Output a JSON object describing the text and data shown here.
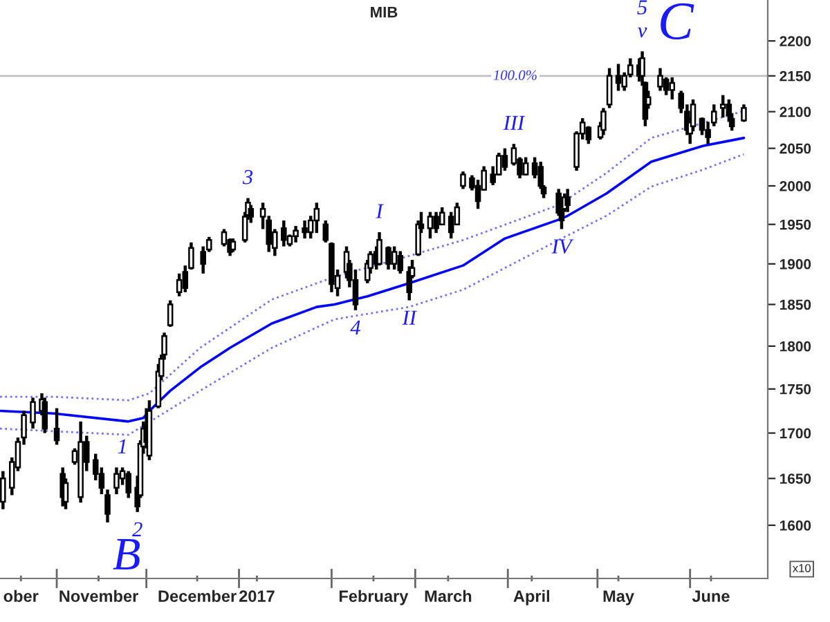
{
  "chart_data": {
    "type": "candlestick",
    "title": "MIB",
    "log": true,
    "grid": false,
    "legend": false,
    "color": "#000000",
    "x": [
      "2016-10-14",
      "2016-10-17",
      "2016-10-19",
      "2016-10-21",
      "2016-10-24",
      "2016-10-27",
      "2016-10-28",
      "2016-11-01",
      "2016-11-03",
      "2016-11-04",
      "2016-11-07",
      "2016-11-09",
      "2016-11-11",
      "2016-11-14",
      "2016-11-16",
      "2016-11-18",
      "2016-11-21",
      "2016-11-23",
      "2016-11-25",
      "2016-11-28",
      "2016-11-29",
      "2016-11-30",
      "2016-12-01",
      "2016-12-02",
      "2016-12-05",
      "2016-12-06",
      "2016-12-07",
      "2016-12-09",
      "2016-12-12",
      "2016-12-14",
      "2016-12-16",
      "2016-12-20",
      "2016-12-22",
      "2016-12-27",
      "2016-12-29",
      "2016-12-30",
      "2017-01-03",
      "2017-01-04",
      "2017-01-05",
      "2017-01-09",
      "2017-01-11",
      "2017-01-13",
      "2017-01-16",
      "2017-01-18",
      "2017-01-20",
      "2017-01-23",
      "2017-01-25",
      "2017-01-27",
      "2017-01-30",
      "2017-02-01",
      "2017-02-03",
      "2017-02-06",
      "2017-02-07",
      "2017-02-09",
      "2017-02-13",
      "2017-02-14",
      "2017-02-16",
      "2017-02-17",
      "2017-02-20",
      "2017-02-22",
      "2017-02-24",
      "2017-02-27",
      "2017-02-28",
      "2017-03-02",
      "2017-03-03",
      "2017-03-06",
      "2017-03-08",
      "2017-03-10",
      "2017-03-13",
      "2017-03-15",
      "2017-03-17",
      "2017-03-20",
      "2017-03-22",
      "2017-03-24",
      "2017-03-27",
      "2017-03-29",
      "2017-03-31",
      "2017-04-03",
      "2017-04-05",
      "2017-04-07",
      "2017-04-10",
      "2017-04-12",
      "2017-04-13",
      "2017-04-18",
      "2017-04-19",
      "2017-04-20",
      "2017-04-21",
      "2017-04-24",
      "2017-04-26",
      "2017-04-28",
      "2017-05-02",
      "2017-05-03",
      "2017-05-05",
      "2017-05-08",
      "2017-05-10",
      "2017-05-12",
      "2017-05-15",
      "2017-05-16",
      "2017-05-17",
      "2017-05-18",
      "2017-05-22",
      "2017-05-24",
      "2017-05-26",
      "2017-05-29",
      "2017-05-31",
      "2017-06-01",
      "2017-06-02",
      "2017-06-05",
      "2017-06-07",
      "2017-06-09",
      "2017-06-12",
      "2017-06-14",
      "2017-06-15",
      "2017-06-19"
    ],
    "ohlc": [
      [
        1625,
        1658,
        1617,
        1650
      ],
      [
        1640,
        1673,
        1632,
        1668
      ],
      [
        1662,
        1695,
        1658,
        1690
      ],
      [
        1695,
        1725,
        1687,
        1720
      ],
      [
        1712,
        1740,
        1705,
        1735
      ],
      [
        1725,
        1745,
        1720,
        1738
      ],
      [
        1735,
        1740,
        1700,
        1705
      ],
      [
        1705,
        1728,
        1687,
        1692
      ],
      [
        1655,
        1662,
        1620,
        1630
      ],
      [
        1625,
        1650,
        1617,
        1645
      ],
      [
        1668,
        1683,
        1665,
        1680
      ],
      [
        1630,
        1713,
        1624,
        1690
      ],
      [
        1690,
        1697,
        1658,
        1668
      ],
      [
        1670,
        1677,
        1648,
        1655
      ],
      [
        1655,
        1662,
        1633,
        1640
      ],
      [
        1632,
        1638,
        1603,
        1612
      ],
      [
        1640,
        1662,
        1633,
        1655
      ],
      [
        1650,
        1662,
        1643,
        1658
      ],
      [
        1655,
        1658,
        1629,
        1635
      ],
      [
        1640,
        1653,
        1614,
        1620
      ],
      [
        1632,
        1692,
        1629,
        1688
      ],
      [
        1685,
        1713,
        1677,
        1705
      ],
      [
        1710,
        1728,
        1683,
        1690
      ],
      [
        1675,
        1737,
        1670,
        1725
      ],
      [
        1730,
        1779,
        1728,
        1770
      ],
      [
        1765,
        1790,
        1760,
        1785
      ],
      [
        1790,
        1816,
        1784,
        1812
      ],
      [
        1825,
        1855,
        1823,
        1850
      ],
      [
        1865,
        1888,
        1860,
        1880
      ],
      [
        1890,
        1898,
        1865,
        1870
      ],
      [
        1895,
        1927,
        1893,
        1920
      ],
      [
        1915,
        1922,
        1888,
        1900
      ],
      [
        1918,
        1934,
        1915,
        1930
      ],
      [
        1925,
        1944,
        1922,
        1940
      ],
      [
        1930,
        1932,
        1910,
        1915
      ],
      [
        1918,
        1932,
        1915,
        1928
      ],
      [
        1930,
        1966,
        1927,
        1960
      ],
      [
        1962,
        1984,
        1956,
        1978
      ],
      [
        1970,
        1975,
        1952,
        1960
      ],
      [
        1960,
        1978,
        1944,
        1970
      ],
      [
        1955,
        1961,
        1915,
        1925
      ],
      [
        1920,
        1944,
        1910,
        1940
      ],
      [
        1945,
        1955,
        1922,
        1930
      ],
      [
        1925,
        1937,
        1922,
        1935
      ],
      [
        1935,
        1948,
        1927,
        1942
      ],
      [
        1945,
        1955,
        1932,
        1940
      ],
      [
        1940,
        1961,
        1932,
        1955
      ],
      [
        1955,
        1978,
        1939,
        1970
      ],
      [
        1950,
        1955,
        1927,
        1930
      ],
      [
        1925,
        1927,
        1865,
        1875
      ],
      [
        1870,
        1893,
        1860,
        1885
      ],
      [
        1890,
        1922,
        1882,
        1915
      ],
      [
        1900,
        1905,
        1871,
        1880
      ],
      [
        1880,
        1893,
        1843,
        1850
      ],
      [
        1880,
        1905,
        1876,
        1900
      ],
      [
        1895,
        1916,
        1888,
        1912
      ],
      [
        1915,
        1922,
        1893,
        1900
      ],
      [
        1900,
        1940,
        1898,
        1930
      ],
      [
        1920,
        1922,
        1893,
        1900
      ],
      [
        1900,
        1922,
        1893,
        1915
      ],
      [
        1910,
        1916,
        1888,
        1892
      ],
      [
        1890,
        1897,
        1855,
        1865
      ],
      [
        1885,
        1905,
        1882,
        1895
      ],
      [
        1912,
        1955,
        1910,
        1950
      ],
      [
        1950,
        1966,
        1939,
        1945
      ],
      [
        1945,
        1966,
        1932,
        1960
      ],
      [
        1960,
        1966,
        1939,
        1945
      ],
      [
        1950,
        1972,
        1949,
        1965
      ],
      [
        1960,
        1966,
        1932,
        1940
      ],
      [
        1950,
        1978,
        1949,
        1972
      ],
      [
        2000,
        2019,
        1996,
        2015
      ],
      [
        2010,
        2014,
        1994,
        1998
      ],
      [
        2000,
        2008,
        1970,
        1980
      ],
      [
        1995,
        2026,
        1994,
        2020
      ],
      [
        2015,
        2026,
        2001,
        2005
      ],
      [
        2015,
        2044,
        2014,
        2040
      ],
      [
        2040,
        2050,
        2020,
        2025
      ],
      [
        2030,
        2056,
        2027,
        2050
      ],
      [
        2035,
        2038,
        2010,
        2015
      ],
      [
        2015,
        2038,
        2014,
        2030
      ],
      [
        2030,
        2038,
        2010,
        2015
      ],
      [
        2025,
        2032,
        1996,
        2000
      ],
      [
        1998,
        2001,
        1984,
        1990
      ],
      [
        1990,
        1996,
        1961,
        1965
      ],
      [
        1965,
        1978,
        1944,
        1955
      ],
      [
        1970,
        1990,
        1966,
        1985
      ],
      [
        1985,
        1996,
        1966,
        1975
      ],
      [
        2025,
        2073,
        2020,
        2070
      ],
      [
        2070,
        2091,
        2062,
        2085
      ],
      [
        2078,
        2080,
        2056,
        2062
      ],
      [
        2065,
        2086,
        2062,
        2080
      ],
      [
        2075,
        2105,
        2068,
        2100
      ],
      [
        2110,
        2161,
        2105,
        2150
      ],
      [
        2150,
        2167,
        2129,
        2140
      ],
      [
        2135,
        2155,
        2129,
        2150
      ],
      [
        2152,
        2175,
        2148,
        2165
      ],
      [
        2165,
        2175,
        2142,
        2150
      ],
      [
        2150,
        2185,
        2136,
        2175
      ],
      [
        2140,
        2142,
        2080,
        2090
      ],
      [
        2110,
        2129,
        2104,
        2120
      ],
      [
        2135,
        2161,
        2129,
        2150
      ],
      [
        2145,
        2148,
        2123,
        2130
      ],
      [
        2130,
        2148,
        2117,
        2140
      ],
      [
        2125,
        2129,
        2098,
        2105
      ],
      [
        2100,
        2110,
        2068,
        2075
      ],
      [
        2070,
        2092,
        2056,
        2085
      ],
      [
        2080,
        2117,
        2073,
        2110
      ],
      [
        2090,
        2092,
        2068,
        2075
      ],
      [
        2075,
        2086,
        2056,
        2065
      ],
      [
        2085,
        2110,
        2080,
        2100
      ],
      [
        2105,
        2123,
        2092,
        2110
      ],
      [
        2110,
        2117,
        2086,
        2095
      ],
      [
        2090,
        2098,
        2074,
        2080
      ],
      [
        2088,
        2110,
        2086,
        2105
      ]
    ],
    "series": [
      {
        "type": "line",
        "color": "#0000ff",
        "line_style": "solid",
        "x": [
          "2016-10-13",
          "2016-10-31",
          "2016-11-25",
          "2016-11-30",
          "2016-12-02",
          "2016-12-09",
          "2016-12-19",
          "2016-12-29",
          "2017-01-12",
          "2017-01-27",
          "2017-02-02",
          "2017-02-13",
          "2017-02-27",
          "2017-03-17",
          "2017-03-31",
          "2017-04-18",
          "2017-04-21",
          "2017-05-04",
          "2017-05-19",
          "2017-06-05",
          "2017-06-19"
        ],
        "values": [
          1725,
          1722,
          1713,
          1717,
          1725,
          1748,
          1775,
          1798,
          1827,
          1847,
          1850,
          1860,
          1876,
          1898,
          1932,
          1956,
          1961,
          1990,
          2032,
          2053,
          2064
        ]
      },
      {
        "type": "line",
        "color": "#7070ff",
        "line_style": "dotted",
        "x": [
          "2016-10-13",
          "2016-10-31",
          "2016-11-25",
          "2016-12-02",
          "2016-12-19",
          "2017-01-12",
          "2017-02-02",
          "2017-02-27",
          "2017-03-17",
          "2017-04-18",
          "2017-05-04",
          "2017-05-19",
          "2017-06-05",
          "2017-06-19"
        ],
        "values": [
          1741,
          1741,
          1737,
          1745,
          1798,
          1856,
          1884,
          1910,
          1930,
          1975,
          2017,
          2064,
          2084,
          2101
        ]
      },
      {
        "type": "line",
        "color": "#7070ff",
        "line_style": "dotted",
        "x": [
          "2016-10-13",
          "2016-10-31",
          "2016-11-25",
          "2016-12-19",
          "2017-01-12",
          "2017-02-02",
          "2017-02-27",
          "2017-03-17",
          "2017-04-18",
          "2017-05-04",
          "2017-05-19",
          "2017-06-05",
          "2017-06-19"
        ],
        "values": [
          1705,
          1702,
          1698,
          1748,
          1798,
          1832,
          1847,
          1868,
          1930,
          1961,
          1999,
          2021,
          2042
        ]
      }
    ],
    "ref_lines": [
      {
        "axis": "y",
        "value": 2150,
        "color": "#c0c0c0"
      }
    ],
    "annotations": [
      "B",
      "C",
      "100.0%",
      "x10",
      {
        "text": "1",
        "x": "2016-11-23",
        "y": 1662
      },
      {
        "text": "2",
        "x": "2016-11-28",
        "y": 1614
      },
      {
        "text": "3",
        "x": "2017-01-04",
        "y": 1984
      },
      {
        "text": "4",
        "x": "2017-02-09",
        "y": 1843
      },
      {
        "text": "I",
        "x": "2017-02-17",
        "y": 1940
      },
      {
        "text": "II",
        "x": "2017-02-27",
        "y": 1855
      },
      {
        "text": "III",
        "x": "2017-04-03",
        "y": 2056
      },
      {
        "text": "IV",
        "x": "2017-04-19",
        "y": 1944
      },
      {
        "text": "v",
        "x": "2017-05-16",
        "y": 2185
      },
      {
        "text": "5",
        "x": "2017-05-16",
        "y": 2185
      }
    ],
    "xlim": [
      "2016-10-13",
      "2017-06-27"
    ],
    "xticks": [
      {
        "value": "2016-10-20",
        "label": "ober"
      },
      {
        "value": "2016-11-01",
        "label": null
      },
      {
        "value": "2016-11-15",
        "label": "November"
      },
      {
        "value": "2016-12-01",
        "label": null
      },
      {
        "value": "2016-12-18",
        "label": "December"
      },
      {
        "value": "2017-01-01",
        "label": null
      },
      {
        "value": "2017-01-07",
        "label": "2017"
      },
      {
        "value": "2017-02-01",
        "label": null
      },
      {
        "value": "2017-02-15",
        "label": "February"
      },
      {
        "value": "2017-03-01",
        "label": null
      },
      {
        "value": "2017-03-12",
        "label": "March"
      },
      {
        "value": "2017-04-01",
        "label": null
      },
      {
        "value": "2017-04-09",
        "label": "April"
      },
      {
        "value": "2017-05-01",
        "label": null
      },
      {
        "value": "2017-05-08",
        "label": "May"
      },
      {
        "value": "2017-06-01",
        "label": null
      },
      {
        "value": "2017-06-08",
        "label": "June"
      }
    ],
    "ylim": [
      1545,
      2260
    ],
    "yticks": [
      1600,
      1650,
      1700,
      1750,
      1800,
      1850,
      1900,
      1950,
      2000,
      2050,
      2100,
      2150,
      2200
    ]
  }
}
